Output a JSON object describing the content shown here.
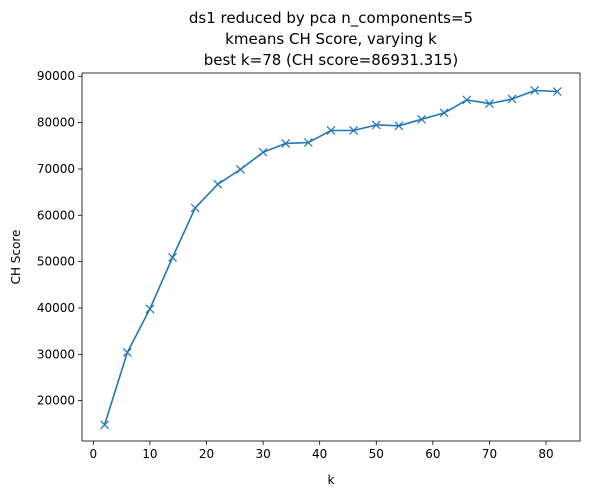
{
  "chart_data": {
    "type": "line",
    "title_lines": [
      "ds1 reduced by pca n_components=5",
      "kmeans CH Score, varying k",
      "best k=78 (CH score=86931.315)"
    ],
    "xlabel": "k",
    "ylabel": "CH Score",
    "xlim": [
      -2,
      86
    ],
    "ylim": [
      11300,
      90700
    ],
    "x_ticks": [
      0,
      10,
      20,
      30,
      40,
      50,
      60,
      70,
      80
    ],
    "y_ticks": [
      20000,
      30000,
      40000,
      50000,
      60000,
      70000,
      80000,
      90000
    ],
    "x_tick_labels": [
      "0",
      "10",
      "20",
      "30",
      "40",
      "50",
      "60",
      "70",
      "80"
    ],
    "y_tick_labels": [
      "20000",
      "30000",
      "40000",
      "50000",
      "60000",
      "70000",
      "80000",
      "90000"
    ],
    "grid": false,
    "marker": "x",
    "series": [
      {
        "color": "#1f77b4",
        "x": [
          2,
          6,
          10,
          14,
          18,
          22,
          26,
          30,
          34,
          38,
          42,
          46,
          50,
          54,
          58,
          62,
          66,
          70,
          74,
          78,
          82
        ],
        "y": [
          14800,
          30400,
          39800,
          50900,
          61600,
          66700,
          69900,
          73600,
          75500,
          75700,
          78300,
          78300,
          79500,
          79300,
          80700,
          82100,
          84900,
          84100,
          85100,
          86931,
          86700
        ]
      }
    ]
  }
}
